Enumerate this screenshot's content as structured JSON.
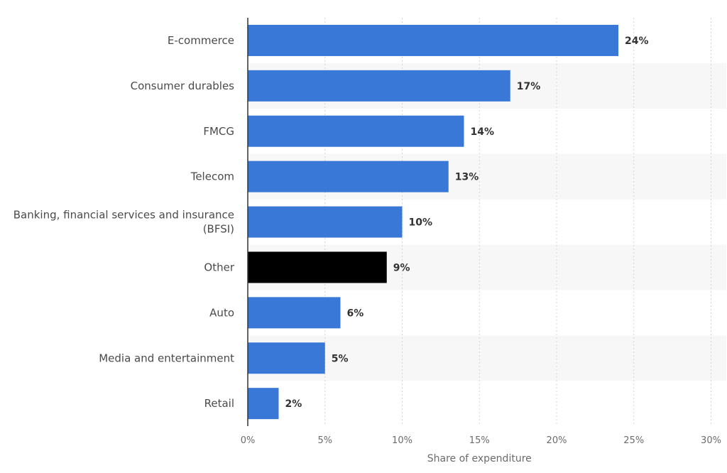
{
  "chart_data": {
    "type": "bar",
    "orientation": "horizontal",
    "categories": [
      "E-commerce",
      "Consumer durables",
      "FMCG",
      "Telecom",
      "Banking, financial services and insurance (BFSI)",
      "Other",
      "Auto",
      "Media and entertainment",
      "Retail"
    ],
    "category_lines": [
      [
        "E-commerce"
      ],
      [
        "Consumer durables"
      ],
      [
        "FMCG"
      ],
      [
        "Telecom"
      ],
      [
        "Banking, financial services and insurance",
        "(BFSI)"
      ],
      [
        "Other"
      ],
      [
        "Auto"
      ],
      [
        "Media and entertainment"
      ],
      [
        "Retail"
      ]
    ],
    "values": [
      24,
      17,
      14,
      13,
      10,
      9,
      6,
      5,
      2
    ],
    "value_labels": [
      "24%",
      "17%",
      "14%",
      "13%",
      "10%",
      "9%",
      "6%",
      "5%",
      "2%"
    ],
    "bar_colors": [
      "#3a78d8",
      "#3a78d8",
      "#3a78d8",
      "#3a78d8",
      "#3a78d8",
      "#000000",
      "#3a78d8",
      "#3a78d8",
      "#3a78d8"
    ],
    "xlabel": "Share of expenditure",
    "ylabel": "",
    "xlim": [
      0,
      30
    ],
    "xticks": [
      0,
      5,
      10,
      15,
      20,
      25,
      30
    ],
    "xtick_labels": [
      "0%",
      "5%",
      "10%",
      "15%",
      "20%",
      "25%",
      "30%"
    ],
    "grid": true,
    "legend": "none",
    "colors": {
      "bar": "#3a78d8",
      "highlight": "#000000",
      "band": "#f7f7f7",
      "grid": "#d4d4d4",
      "axis": "#333333"
    }
  }
}
